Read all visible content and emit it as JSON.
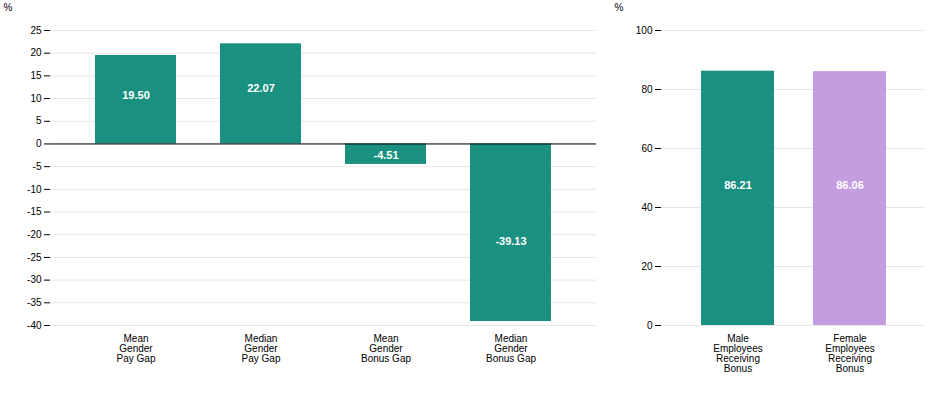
{
  "chart_data": [
    {
      "type": "bar",
      "categories": [
        "Mean\nGender\nPay Gap",
        "Median\nGender\nPay Gap",
        "Mean\nGender\nBonus Gap",
        "Median\nGender\nBonus Gap"
      ],
      "values": [
        19.5,
        22.07,
        -4.51,
        -39.13
      ],
      "value_labels": [
        "19.50",
        "22.07",
        "-4.51",
        "-39.13"
      ],
      "color": "#1a9080",
      "ylim": [
        -40,
        25
      ],
      "yticks": [
        25,
        20,
        15,
        10,
        5,
        0,
        -5,
        -10,
        -15,
        -20,
        -25,
        -30,
        -35,
        -40
      ],
      "ylabel": "%",
      "grid": true,
      "data_labels": true
    },
    {
      "type": "bar",
      "categories": [
        "Male\nEmployees\nReceiving\nBonus",
        "Female\nEmployees\nReceiving\nBonus"
      ],
      "values": [
        86.21,
        86.06
      ],
      "colors": [
        "#1a9080",
        "#c49de0"
      ],
      "ylim": [
        0,
        100
      ],
      "yticks": [
        0,
        20,
        40,
        60,
        80,
        100
      ],
      "ylabel": "%",
      "grid": true,
      "data_labels": true
    }
  ]
}
